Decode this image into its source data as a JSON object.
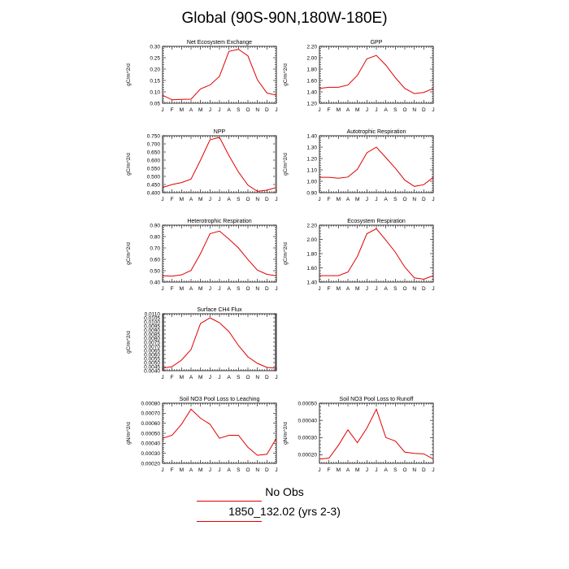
{
  "title": "Global (90S-90N,180W-180E)",
  "footer": {
    "obs_label": "No Obs",
    "case_label": "1850_132.02 (yrs 2-3)"
  },
  "colors": {
    "series": "#e00000",
    "axis": "#000000"
  },
  "chart_data": [
    {
      "type": "line",
      "title": "Net Ecosystem Exchange",
      "ylabel": "gC/m^2/d",
      "x": [
        "J",
        "F",
        "M",
        "A",
        "M",
        "J",
        "J",
        "A",
        "S",
        "O",
        "N",
        "D",
        "J"
      ],
      "ylim": [
        0.05,
        0.3
      ],
      "yticks": [
        0.05,
        0.1,
        0.15,
        0.2,
        0.25,
        0.3
      ],
      "ytick_labels": [
        "0.05",
        "0.10",
        "0.15",
        "0.20",
        "0.25",
        "0.30"
      ],
      "values": [
        0.085,
        0.065,
        0.067,
        0.068,
        0.113,
        0.13,
        0.168,
        0.278,
        0.287,
        0.258,
        0.153,
        0.095,
        0.085
      ]
    },
    {
      "type": "line",
      "title": "GPP",
      "ylabel": "gC/m^2/d",
      "x": [
        "J",
        "F",
        "M",
        "A",
        "M",
        "J",
        "J",
        "A",
        "S",
        "O",
        "N",
        "D",
        "J"
      ],
      "ylim": [
        1.2,
        2.2
      ],
      "yticks": [
        1.2,
        1.4,
        1.6,
        1.8,
        2.0,
        2.2
      ],
      "ytick_labels": [
        "1.20",
        "1.40",
        "1.60",
        "1.80",
        "2.00",
        "2.20"
      ],
      "values": [
        1.46,
        1.48,
        1.48,
        1.52,
        1.69,
        1.98,
        2.04,
        1.87,
        1.65,
        1.46,
        1.37,
        1.39,
        1.46
      ]
    },
    {
      "type": "line",
      "title": "NPP",
      "ylabel": "gC/m^2/d",
      "x": [
        "J",
        "F",
        "M",
        "A",
        "M",
        "J",
        "J",
        "A",
        "S",
        "O",
        "N",
        "D",
        "J"
      ],
      "ylim": [
        0.4,
        0.75
      ],
      "yticks": [
        0.4,
        0.45,
        0.5,
        0.55,
        0.6,
        0.65,
        0.7,
        0.75
      ],
      "ytick_labels": [
        "0.400",
        "0.450",
        "0.500",
        "0.550",
        "0.600",
        "0.650",
        "0.700",
        "0.750"
      ],
      "values": [
        0.432,
        0.45,
        0.462,
        0.483,
        0.6,
        0.725,
        0.74,
        0.628,
        0.527,
        0.446,
        0.408,
        0.415,
        0.432
      ]
    },
    {
      "type": "line",
      "title": "Autotrophic Respiration",
      "ylabel": "gC/m^2/d",
      "x": [
        "J",
        "F",
        "M",
        "A",
        "M",
        "J",
        "J",
        "A",
        "S",
        "O",
        "N",
        "D",
        "J"
      ],
      "ylim": [
        0.9,
        1.4
      ],
      "yticks": [
        0.9,
        1.0,
        1.1,
        1.2,
        1.3,
        1.4
      ],
      "ytick_labels": [
        "0.90",
        "1.00",
        "1.10",
        "1.20",
        "1.30",
        "1.40"
      ],
      "values": [
        1.035,
        1.035,
        1.027,
        1.037,
        1.105,
        1.25,
        1.3,
        1.208,
        1.115,
        1.01,
        0.955,
        0.97,
        1.035
      ]
    },
    {
      "type": "line",
      "title": "Heterotrophic Respiration",
      "ylabel": "gC/m^2/d",
      "x": [
        "J",
        "F",
        "M",
        "A",
        "M",
        "J",
        "J",
        "A",
        "S",
        "O",
        "N",
        "D",
        "J"
      ],
      "ylim": [
        0.4,
        0.9
      ],
      "yticks": [
        0.4,
        0.5,
        0.6,
        0.7,
        0.8,
        0.9
      ],
      "ytick_labels": [
        "0.40",
        "0.50",
        "0.60",
        "0.70",
        "0.80",
        "0.90"
      ],
      "values": [
        0.455,
        0.452,
        0.463,
        0.502,
        0.65,
        0.825,
        0.848,
        0.778,
        0.7,
        0.598,
        0.505,
        0.468,
        0.455
      ]
    },
    {
      "type": "line",
      "title": "Ecosystem Respiration",
      "ylabel": "gC/m^2/d",
      "x": [
        "J",
        "F",
        "M",
        "A",
        "M",
        "J",
        "J",
        "A",
        "S",
        "O",
        "N",
        "D",
        "J"
      ],
      "ylim": [
        1.4,
        2.2
      ],
      "yticks": [
        1.4,
        1.6,
        1.8,
        2.0,
        2.2
      ],
      "ytick_labels": [
        "1.40",
        "1.60",
        "1.80",
        "2.00",
        "2.20"
      ],
      "values": [
        1.49,
        1.49,
        1.49,
        1.54,
        1.76,
        2.08,
        2.15,
        1.99,
        1.82,
        1.61,
        1.46,
        1.44,
        1.49
      ]
    },
    {
      "type": "line",
      "title": "Surface CH4 Flux",
      "ylabel": "gC/m^2/d",
      "x": [
        "J",
        "F",
        "M",
        "A",
        "M",
        "J",
        "J",
        "A",
        "S",
        "O",
        "N",
        "D",
        "J"
      ],
      "ylim": [
        0.004,
        0.011
      ],
      "yticks": [
        0.004,
        0.0045,
        0.005,
        0.0055,
        0.006,
        0.0065,
        0.007,
        0.0075,
        0.008,
        0.0085,
        0.009,
        0.0095,
        0.01,
        0.0105,
        0.011
      ],
      "ytick_labels": [
        "0.0040",
        "0.0045",
        "0.0050",
        "0.0055",
        "0.0060",
        "0.0065",
        "0.0070",
        "0.0075",
        "0.0080",
        "0.0085",
        "0.0090",
        "0.0095",
        "0.0100",
        "0.0105",
        "0.0110"
      ],
      "values": [
        0.0043,
        0.0045,
        0.0053,
        0.0066,
        0.0098,
        0.0105,
        0.0099,
        0.0088,
        0.0071,
        0.0057,
        0.0049,
        0.0044,
        0.0043
      ]
    },
    {
      "type": "line",
      "title": "Soil NO3 Pool Loss to Leaching",
      "ylabel": "gN/m^2/d",
      "x": [
        "J",
        "F",
        "M",
        "A",
        "M",
        "J",
        "J",
        "A",
        "S",
        "O",
        "N",
        "D",
        "J"
      ],
      "ylim": [
        0.0002,
        0.0008
      ],
      "yticks": [
        0.0002,
        0.0003,
        0.0004,
        0.0005,
        0.0006,
        0.0007,
        0.0008
      ],
      "ytick_labels": [
        "0.00020",
        "0.00030",
        "0.00040",
        "0.00050",
        "0.00060",
        "0.00070",
        "0.00080"
      ],
      "values": [
        0.00045,
        0.00048,
        0.00059,
        0.00074,
        0.00065,
        0.00059,
        0.00045,
        0.00048,
        0.00048,
        0.00036,
        0.00028,
        0.00029,
        0.00045
      ]
    },
    {
      "type": "line",
      "title": "Soil NO3 Pool Loss to Runoff",
      "ylabel": "gN/m^2/d",
      "x": [
        "J",
        "F",
        "M",
        "A",
        "M",
        "J",
        "J",
        "A",
        "S",
        "O",
        "N",
        "D",
        "J"
      ],
      "ylim": [
        0.00015,
        0.0005
      ],
      "yticks": [
        0.0002,
        0.0003,
        0.0004,
        0.0005
      ],
      "ytick_labels": [
        "0.00020",
        "0.00030",
        "0.00040",
        "0.00050"
      ],
      "values": [
        0.000175,
        0.00018,
        0.000255,
        0.000345,
        0.00027,
        0.000355,
        0.000465,
        0.0003,
        0.00028,
        0.000215,
        0.000208,
        0.000205,
        0.000175
      ]
    }
  ]
}
